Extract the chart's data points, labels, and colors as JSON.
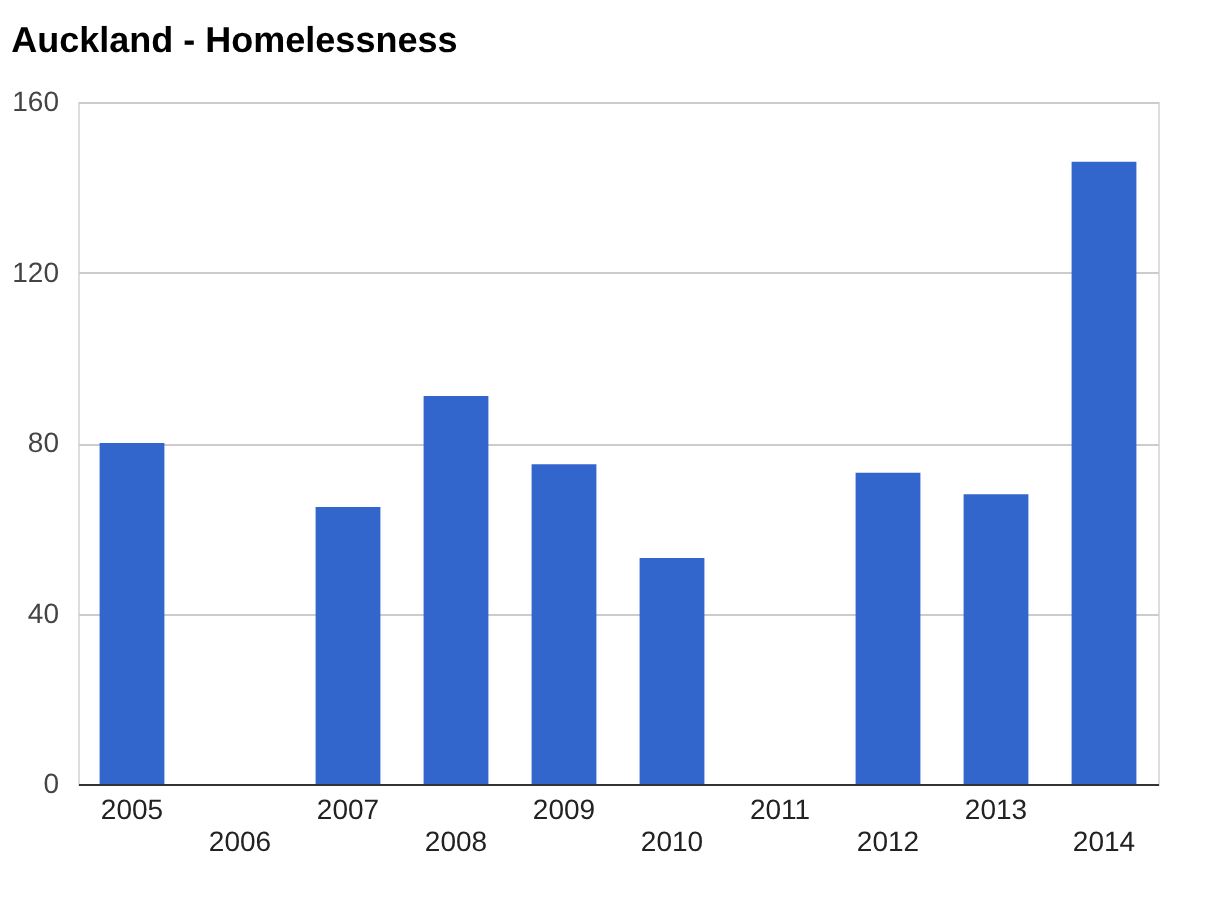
{
  "chart_data": {
    "type": "bar",
    "title": "Auckland - Homelessness",
    "categories": [
      "2005",
      "2006",
      "2007",
      "2008",
      "2009",
      "2010",
      "2011",
      "2012",
      "2013",
      "2014"
    ],
    "values": [
      80,
      null,
      65,
      91,
      75,
      53,
      null,
      73,
      68,
      146
    ],
    "color": "#3366cc",
    "ylim": [
      0,
      160
    ],
    "yticks": [
      0,
      40,
      80,
      120,
      160
    ],
    "grid": "y"
  }
}
